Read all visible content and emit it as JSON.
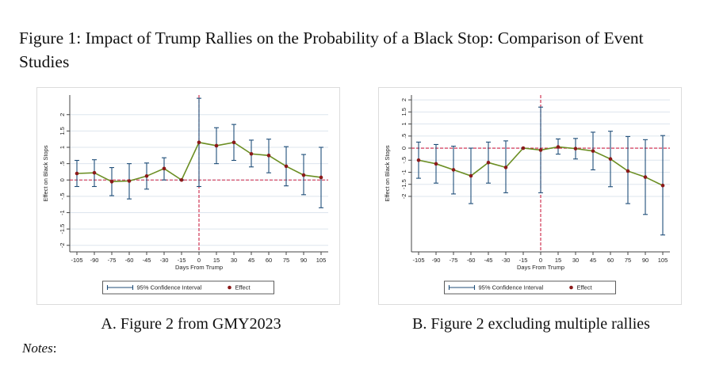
{
  "figure": {
    "title": "Figure 1: Impact of Trump Rallies on the Probability of a Black Stop: Comparison of Event Studies",
    "caption_a": "A. Figure 2 from GMY2023",
    "caption_b": "B. Figure 2 excluding multiple rallies",
    "notes_label": "Notes",
    "notes_colon": ":"
  },
  "colors": {
    "line": "#6b8e23",
    "ci": "#1f4e79",
    "point": "#8b1a1a",
    "ref": "#cc2244",
    "grid": "#dde5ee",
    "panel_bg": "#ffffff"
  },
  "chart_data": [
    {
      "type": "line",
      "panel": "A",
      "xlabel": "Days From Trump",
      "ylabel": "Effect on Black Stops",
      "x": [
        -105,
        -90,
        -75,
        -60,
        -45,
        -30,
        -15,
        0,
        15,
        30,
        45,
        60,
        75,
        90,
        105
      ],
      "x_tick_labels": [
        "-105",
        "-90",
        "-75",
        "-60",
        "-45",
        "-30",
        "-15",
        "0",
        "15",
        "30",
        "45",
        "60",
        "75",
        "90",
        "105"
      ],
      "ylim": [
        -2.2,
        2.6
      ],
      "y_ticks": [
        -2,
        -1.5,
        -1,
        -0.5,
        0,
        0.5,
        1,
        1.5,
        2
      ],
      "y_tick_labels": [
        "-2",
        "-1.5",
        "-1",
        "-.5",
        "0",
        ".5",
        "1",
        "1.5",
        "2"
      ],
      "grid": true,
      "legend": [
        "95% Confidence Interval",
        "Effect"
      ],
      "legend_position": "bottom",
      "reference_lines": {
        "y": 0,
        "x": 0
      },
      "series": [
        {
          "name": "Effect",
          "values": [
            0.2,
            0.22,
            -0.05,
            -0.03,
            0.12,
            0.35,
            0.0,
            1.15,
            1.05,
            1.15,
            0.8,
            0.75,
            0.42,
            0.15,
            0.08
          ],
          "ci_low": [
            -0.2,
            -0.2,
            -0.48,
            -0.58,
            -0.28,
            0.0,
            0.0,
            -0.2,
            0.5,
            0.6,
            0.4,
            0.22,
            -0.18,
            -0.45,
            -0.85
          ],
          "ci_high": [
            0.6,
            0.62,
            0.38,
            0.5,
            0.52,
            0.68,
            0.0,
            2.5,
            1.6,
            1.7,
            1.22,
            1.25,
            1.02,
            0.78,
            1.0
          ]
        }
      ]
    },
    {
      "type": "line",
      "panel": "B",
      "xlabel": "Days From Trump",
      "ylabel": "Effect on Black Stops",
      "x": [
        -105,
        -90,
        -75,
        -60,
        -45,
        -30,
        -15,
        0,
        15,
        30,
        45,
        60,
        75,
        90,
        105
      ],
      "x_tick_labels": [
        "-105",
        "-90",
        "-75",
        "-60",
        "-45",
        "-30",
        "-15",
        "0",
        "15",
        "30",
        "45",
        "60",
        "75",
        "90",
        "105"
      ],
      "ylim": [
        -4.3,
        2.2
      ],
      "y_ticks": [
        -2,
        -1.5,
        -1,
        -0.5,
        0,
        0.5,
        1,
        1.5,
        2
      ],
      "y_tick_labels": [
        "-2",
        "-1.5",
        "-1",
        "-.5",
        "0",
        ".5",
        "1",
        "1.5",
        "2"
      ],
      "grid": true,
      "legend": [
        "95% Confidence Interval",
        "Effect"
      ],
      "legend_position": "bottom",
      "reference_lines": {
        "y": 0,
        "x": 0
      },
      "series": [
        {
          "name": "Effect",
          "values": [
            -0.5,
            -0.65,
            -0.9,
            -1.15,
            -0.6,
            -0.8,
            0.0,
            -0.08,
            0.05,
            -0.02,
            -0.12,
            -0.45,
            -0.95,
            -1.2,
            -1.55
          ],
          "ci_low": [
            -1.25,
            -1.45,
            -1.9,
            -2.3,
            -1.45,
            -1.85,
            0.0,
            -1.85,
            -0.25,
            -0.45,
            -0.9,
            -1.6,
            -2.3,
            -2.75,
            -3.6
          ],
          "ci_high": [
            0.25,
            0.15,
            0.08,
            0.0,
            0.25,
            0.3,
            0.0,
            1.7,
            0.38,
            0.4,
            0.66,
            0.7,
            0.48,
            0.35,
            0.52
          ]
        }
      ]
    }
  ]
}
